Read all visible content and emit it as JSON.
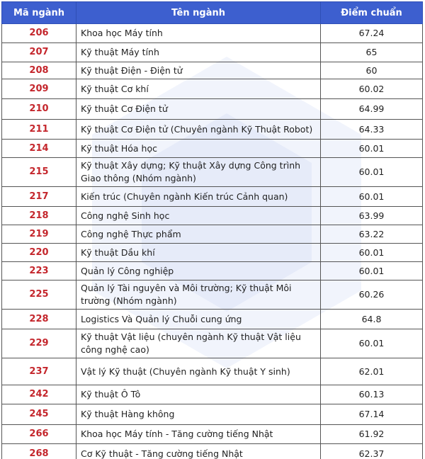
{
  "table": {
    "header": [
      "Mã ngành",
      "Tên ngành",
      "Điểm chuẩn"
    ],
    "rows": [
      [
        "206",
        "Khoa học Máy tính",
        67.24
      ],
      [
        "207",
        "Kỹ thuật Máy tính",
        65
      ],
      [
        "208",
        "Kỹ thuật Điện - Điện tử",
        60
      ],
      [
        "209",
        "Kỹ thuật Cơ khí",
        60.02
      ],
      [
        "210",
        "Kỹ thuật Cơ Điện tử",
        64.99
      ],
      [
        "211",
        "Kỹ thuật Cơ Điện tử (Chuyên ngành Kỹ Thuật Robot)",
        64.33
      ],
      [
        "214",
        "Kỹ thuật Hóa học",
        60.01
      ],
      [
        "215",
        "Kỹ thuật Xây dựng;  Kỹ thuật Xây dựng Công trình Giao thông (Nhóm ngành)",
        60.01
      ],
      [
        "217",
        "Kiến trúc (Chuyên ngành Kiến trúc Cảnh quan)",
        60.01
      ],
      [
        "218",
        "Công nghệ Sinh học",
        63.99
      ],
      [
        "219",
        "Công nghệ Thực phẩm",
        63.22
      ],
      [
        "220",
        "Kỹ thuật Dầu khí",
        60.01
      ],
      [
        "223",
        "Quản lý Công nghiệp",
        60.01
      ],
      [
        "225",
        "Quản lý Tài nguyên và Môi trường; Kỹ thuật Môi trường (Nhóm ngành)",
        60.26
      ],
      [
        "228",
        "Logistics Và Quản lý Chuỗi cung ứng",
        64.8
      ],
      [
        "229",
        "Kỹ thuật Vật liệu (chuyên ngành Kỹ thuật Vật liệu công nghệ cao)",
        60.01
      ],
      [
        "237",
        "Vật lý Kỹ thuật (Chuyên ngành Kỹ thuật Y sinh)",
        62.01
      ],
      [
        "242",
        "Kỹ thuật Ô Tô",
        60.13
      ],
      [
        "245",
        "Kỹ thuật Hàng không",
        67.14
      ],
      [
        "266",
        "Khoa học Máy tính - Tăng cường tiếng Nhật",
        61.92
      ],
      [
        "268",
        "Cơ Kỹ thuật - Tăng cường tiếng Nhật",
        62.37
      ]
    ]
  }
}
